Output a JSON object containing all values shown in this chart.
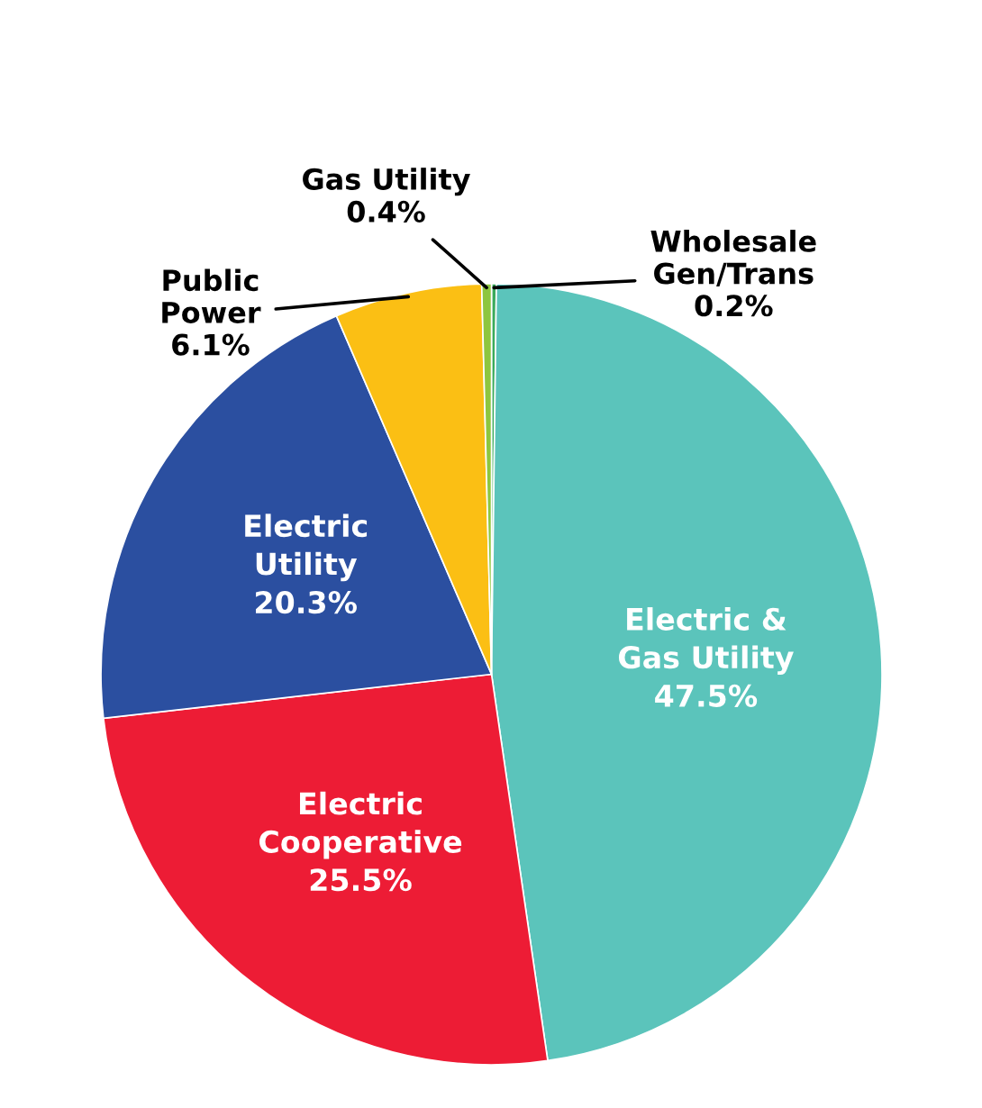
{
  "chart_data": {
    "type": "pie",
    "categories": [
      "Wholesale\nGen/Trans",
      "Electric &\nGas Utility",
      "Electric\nCooperative",
      "Electric\nUtility",
      "Public\nPower",
      "Gas Utility"
    ],
    "values": [
      0.2,
      47.5,
      25.5,
      20.3,
      6.1,
      0.4
    ],
    "value_labels": [
      "0.2%",
      "47.5%",
      "25.5%",
      "20.3%",
      "6.1%",
      "0.4%"
    ],
    "colors": [
      "#3aaa5c",
      "#5bc4bb",
      "#ed1c35",
      "#2b4fa0",
      "#fbbf14",
      "#8dc63f"
    ]
  }
}
